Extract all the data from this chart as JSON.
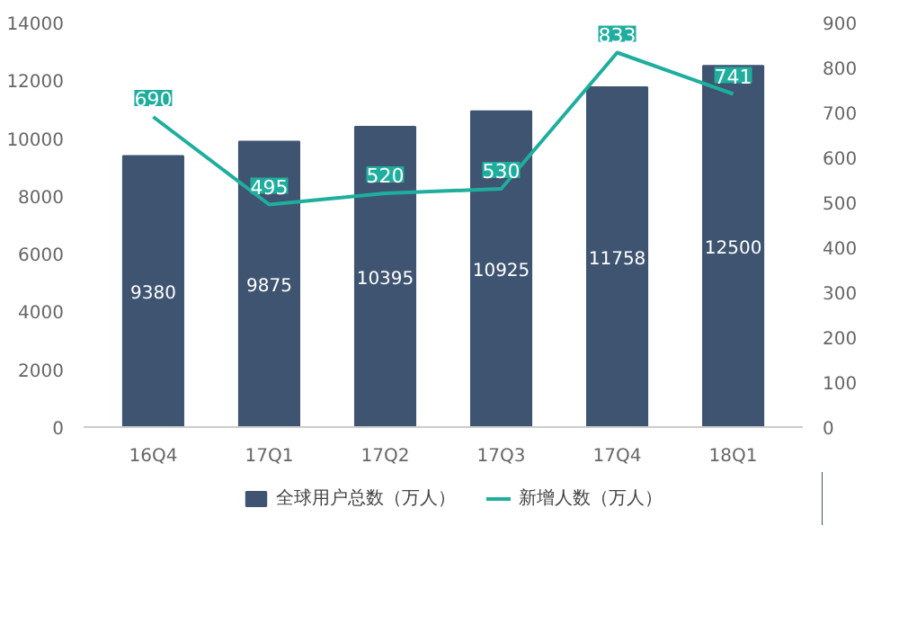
{
  "chart_data": {
    "type": "bar",
    "categories": [
      "16Q4",
      "17Q1",
      "17Q2",
      "17Q3",
      "17Q4",
      "18Q1"
    ],
    "series": [
      {
        "name": "全球用户总数（万人）",
        "color": "#3e5470",
        "values": [
          9380,
          9875,
          10395,
          10925,
          11758,
          12500
        ]
      },
      {
        "name": "新增人数（万人）",
        "type": "line",
        "axis": "y2",
        "color": "#1fae9e",
        "values": [
          690,
          495,
          520,
          530,
          833,
          741
        ]
      }
    ],
    "ylim": [
      0,
      14000
    ],
    "yticks": [
      0,
      2000,
      4000,
      6000,
      8000,
      10000,
      12000,
      14000
    ],
    "y2lim": [
      0,
      900
    ],
    "y2ticks": [
      0,
      100,
      200,
      300,
      400,
      500,
      600,
      700,
      800,
      900
    ],
    "data_labels": true,
    "grid": false,
    "legend": "bottom",
    "marker": "none",
    "line_style": "solid"
  }
}
